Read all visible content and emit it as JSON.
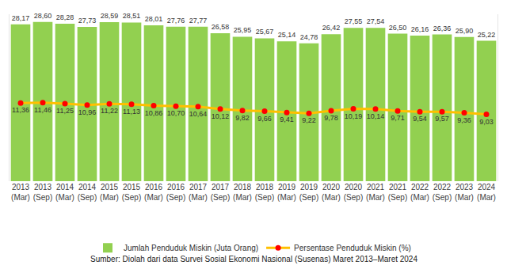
{
  "chart_data": {
    "type": "bar",
    "categories": [
      "2013 (Mar)",
      "2013 (Sep)",
      "2014 (Mar)",
      "2014 (Sep)",
      "2015 (Mar)",
      "2015 (Sep)",
      "2016 (Mar)",
      "2016 (Sep)",
      "2017 (Mar)",
      "2017 (Sep)",
      "2018 (Mar)",
      "2018 (Sep)",
      "2019 (Mar)",
      "2019 (Sep)",
      "2020 (Mar)",
      "2020 (Sep)",
      "2021 (Mar)",
      "2021 (Sep)",
      "2022 (Mar)",
      "2022 (Sep)",
      "2023 (Mar)",
      "2024 (Mar)"
    ],
    "series": [
      {
        "name": "Jumlah Penduduk Miskin (Juta Orang)",
        "type": "bar",
        "color": "#92d050",
        "values": [
          28.17,
          28.6,
          28.28,
          27.73,
          28.59,
          28.51,
          28.01,
          27.76,
          27.77,
          26.58,
          25.95,
          25.67,
          25.14,
          24.78,
          26.42,
          27.55,
          27.54,
          26.5,
          26.16,
          26.36,
          25.9,
          25.22
        ],
        "value_labels": [
          "28,17",
          "28,60",
          "28,28",
          "27,73",
          "28,59",
          "28,51",
          "28,01",
          "27,76",
          "27,77",
          "26,58",
          "25,95",
          "25,67",
          "25,14",
          "24,78",
          "26,42",
          "27,55",
          "27,54",
          "26,50",
          "26,16",
          "26,36",
          "25,90",
          "25,22"
        ]
      },
      {
        "name": "Persentase Penduduk Miskin (%)",
        "type": "line",
        "axis": "y2",
        "color": "#ffc000",
        "marker": "circle",
        "values": [
          11.36,
          11.46,
          11.25,
          10.96,
          11.22,
          11.13,
          10.86,
          10.7,
          10.64,
          10.12,
          9.82,
          9.66,
          9.41,
          9.22,
          9.78,
          10.19,
          10.14,
          9.71,
          9.54,
          9.57,
          9.36,
          9.03
        ],
        "value_labels": [
          "11,36",
          "11,46",
          "11,25",
          "10,96",
          "11,22",
          "11,13",
          "10,86",
          "10,70",
          "10,64",
          "10,12",
          "9,82",
          "9,66",
          "9,41",
          "9,22",
          "9,78",
          "10,19",
          "10,14",
          "9,71",
          "9,54",
          "9,57",
          "9,36",
          "9,03"
        ]
      }
    ],
    "ylim": [
      0,
      30
    ],
    "y2lim": [
      -5,
      30
    ],
    "data_labels": true,
    "tick_labels": "x",
    "grid": false,
    "legend": "bottom",
    "source": "Sumber: Diolah dari data Survei Sosial Ekonomi Nasional (Susenas) Maret 2013–Maret 2024"
  }
}
